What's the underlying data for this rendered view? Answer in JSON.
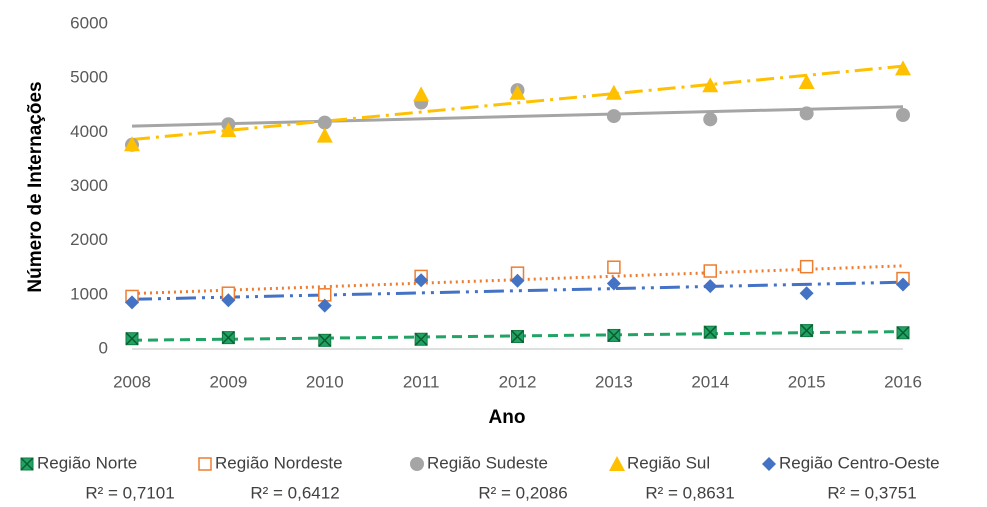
{
  "chart_data": {
    "type": "scatter",
    "x_label": "Ano",
    "y_label": "Número de Internações",
    "x": [
      2008,
      2009,
      2010,
      2011,
      2012,
      2013,
      2014,
      2015,
      2016
    ],
    "xlim": [
      2008,
      2016
    ],
    "xticks": [
      2008,
      2009,
      2010,
      2011,
      2012,
      2013,
      2014,
      2015,
      2016
    ],
    "ylim": [
      0,
      6000
    ],
    "yticks": [
      0,
      1000,
      2000,
      3000,
      4000,
      5000,
      6000
    ],
    "grid": false,
    "series": [
      {
        "name": "Região Norte",
        "color": "#21a366",
        "marker": "square-x",
        "trendline": "dashed",
        "trendline_label": "R² = 0,7101",
        "values": [
          190,
          210,
          160,
          180,
          230,
          250,
          310,
          340,
          300
        ]
      },
      {
        "name": "Região Nordeste",
        "color": "#ed7d31",
        "marker": "open-square",
        "trendline": "dotted",
        "trendline_label": "R² = 0,6412",
        "values": [
          970,
          1030,
          1000,
          1340,
          1400,
          1510,
          1440,
          1520,
          1300
        ]
      },
      {
        "name": "Região Sudeste",
        "color": "#a5a5a5",
        "marker": "circle",
        "trendline": "solid",
        "trendline_label": "R² = 0,2086",
        "values": [
          3770,
          4150,
          4180,
          4550,
          4780,
          4300,
          4240,
          4350,
          4320
        ]
      },
      {
        "name": "Região Sul",
        "color": "#ffc000",
        "marker": "triangle",
        "trendline": "dash-dot",
        "trendline_label": "R² = 0,8631",
        "values": [
          3780,
          4040,
          3940,
          4700,
          4730,
          4730,
          4870,
          4930,
          5180
        ]
      },
      {
        "name": "Região Centro-Oeste",
        "color": "#4472c4",
        "marker": "diamond",
        "trendline": "long-dash-dot-dot",
        "trendline_label": "R² = 0,3751",
        "values": [
          860,
          900,
          800,
          1270,
          1260,
          1210,
          1160,
          1030,
          1190
        ]
      }
    ]
  }
}
